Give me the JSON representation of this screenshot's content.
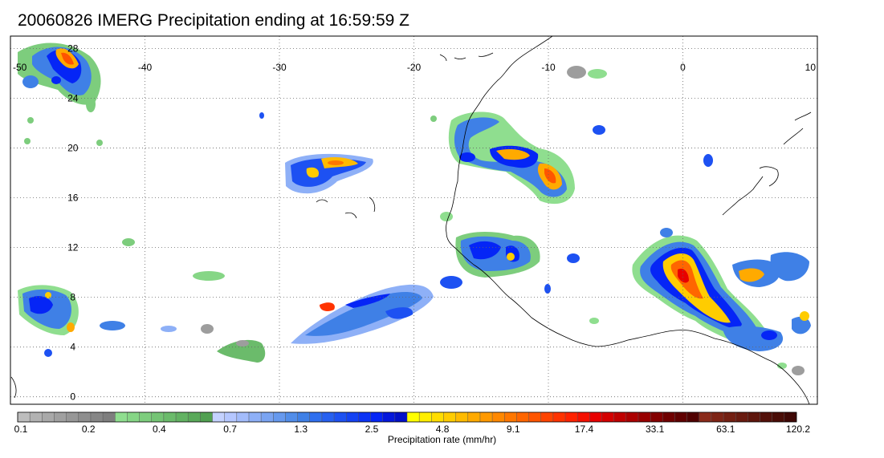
{
  "title": "20060826 IMERG Precipitation ending at 16:59:59 Z",
  "map": {
    "lon_range": [
      -50,
      10
    ],
    "lat_range": [
      -0.6,
      29
    ],
    "lon_ticks": [
      {
        "value": -50,
        "label": "-50"
      },
      {
        "value": -40,
        "label": "-40"
      },
      {
        "value": -30,
        "label": "-30"
      },
      {
        "value": -20,
        "label": "-20"
      },
      {
        "value": -10,
        "label": "-10"
      },
      {
        "value": 0,
        "label": "0"
      },
      {
        "value": 10,
        "label": "10"
      }
    ],
    "lat_ticks": [
      {
        "value": 0,
        "label": "0"
      },
      {
        "value": 4,
        "label": "4"
      },
      {
        "value": 8,
        "label": "8"
      },
      {
        "value": 12,
        "label": "12"
      },
      {
        "value": 16,
        "label": "16"
      },
      {
        "value": 20,
        "label": "20"
      },
      {
        "value": 24,
        "label": "24"
      },
      {
        "value": 28,
        "label": "28"
      }
    ],
    "grid": true
  },
  "colorbar": {
    "title": "Precipitation rate (mm/hr)",
    "colors": [
      "#bdbdbd",
      "#b2b2b2",
      "#a9a9a9",
      "#a0a0a0",
      "#979797",
      "#8e8e8e",
      "#868686",
      "#7e7e7e",
      "#8fde8f",
      "#86d686",
      "#7dcd7d",
      "#74c474",
      "#6bbb6b",
      "#62b262",
      "#59a959",
      "#51a051",
      "#c4d2ff",
      "#b5c7ff",
      "#a3bcfb",
      "#8eb0f7",
      "#7aa4f2",
      "#6699ee",
      "#518de9",
      "#3f80e6",
      "#2f6fef",
      "#2660f0",
      "#1d51f2",
      "#1442f3",
      "#0b33f5",
      "#0525f6",
      "#0518dc",
      "#0210c8",
      "#ffff00",
      "#ffee00",
      "#ffdd00",
      "#ffcc00",
      "#ffbb00",
      "#ffaa00",
      "#ff9900",
      "#ff8800",
      "#ff7700",
      "#ff6600",
      "#ff5500",
      "#ff4400",
      "#ff3300",
      "#ff2200",
      "#f51000",
      "#e80000",
      "#d40000",
      "#c00000",
      "#ac0000",
      "#980000",
      "#840000",
      "#700000",
      "#600000",
      "#500000",
      "#8a2a1a",
      "#7e2416",
      "#731f12",
      "#691b10",
      "#5e160c",
      "#53110a",
      "#4a0d07",
      "#3f0805"
    ],
    "labels": [
      "0.1",
      "0.2",
      "0.4",
      "0.7",
      "1.3",
      "2.5",
      "4.8",
      "9.1",
      "17.4",
      "33.1",
      "63.1",
      "120.2"
    ]
  }
}
